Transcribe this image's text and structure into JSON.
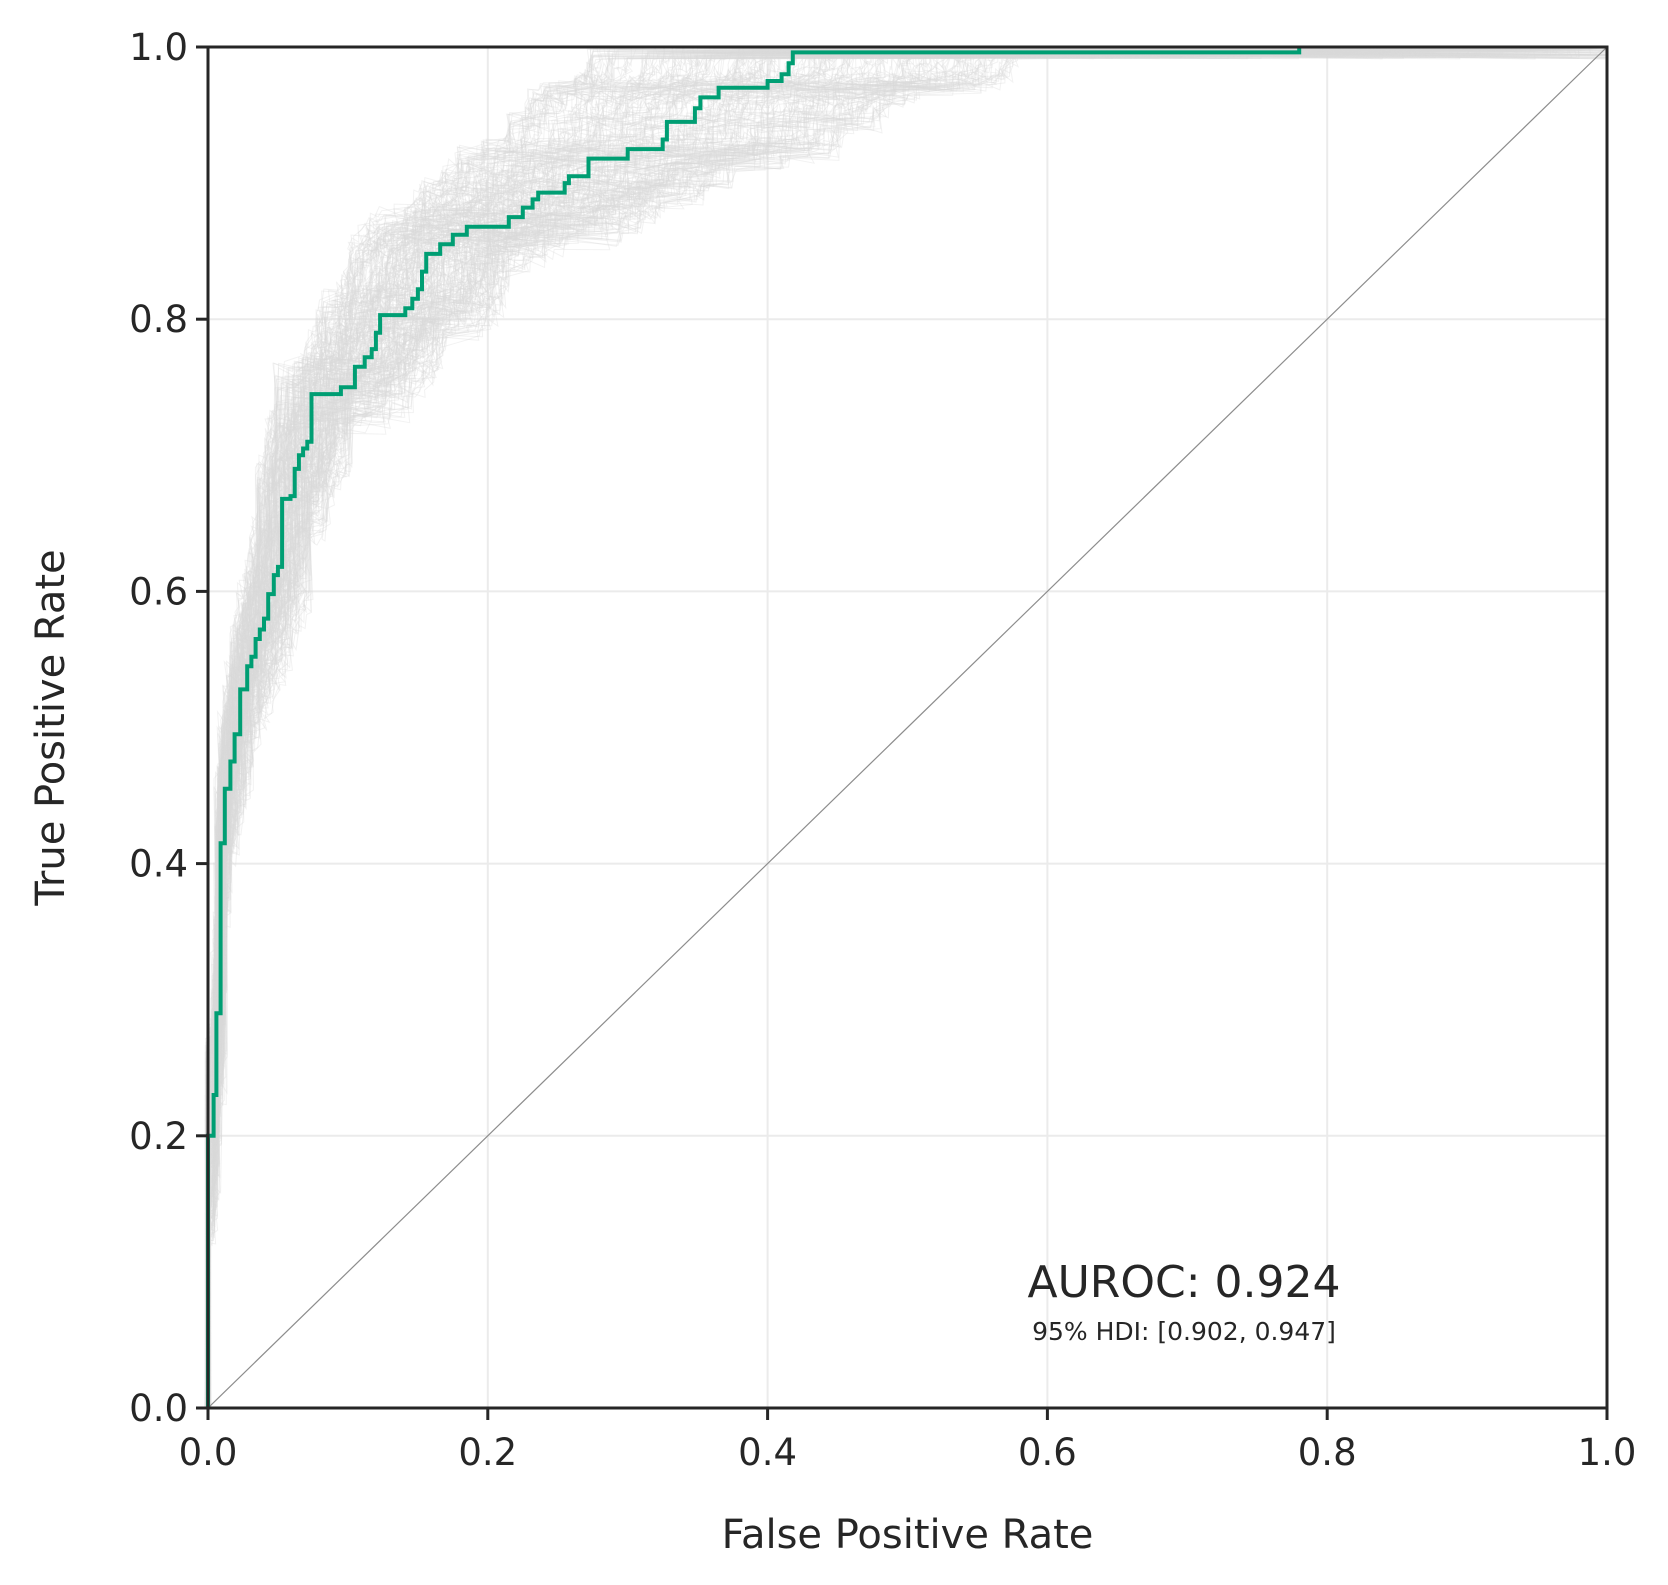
{
  "chart_data": {
    "type": "line",
    "xlabel": "False Positive Rate",
    "ylabel": "True Positive Rate",
    "xlim": [
      0.0,
      1.0
    ],
    "ylim": [
      0.0,
      1.0
    ],
    "xticks": [
      "0.0",
      "0.2",
      "0.4",
      "0.6",
      "0.8",
      "1.0"
    ],
    "yticks": [
      "0.0",
      "0.2",
      "0.4",
      "0.6",
      "0.8",
      "1.0"
    ],
    "grid": true,
    "annotation": {
      "auroc": "AUROC: 0.924",
      "hdi": "95% HDI: [0.902, 0.947]"
    },
    "colors": {
      "roc": "#009e73",
      "samples": "#d9d9d9",
      "diagonal": "#8c8c8c",
      "grid": "#ebebeb",
      "axes": "#262626"
    },
    "roc_curve": {
      "step": true,
      "points": [
        [
          0.0,
          0.0
        ],
        [
          0.0,
          0.2
        ],
        [
          0.004,
          0.2
        ],
        [
          0.004,
          0.23
        ],
        [
          0.006,
          0.23
        ],
        [
          0.006,
          0.29
        ],
        [
          0.009,
          0.29
        ],
        [
          0.009,
          0.415
        ],
        [
          0.012,
          0.415
        ],
        [
          0.012,
          0.455
        ],
        [
          0.016,
          0.455
        ],
        [
          0.016,
          0.475
        ],
        [
          0.019,
          0.475
        ],
        [
          0.019,
          0.495
        ],
        [
          0.023,
          0.495
        ],
        [
          0.023,
          0.528
        ],
        [
          0.028,
          0.528
        ],
        [
          0.028,
          0.545
        ],
        [
          0.031,
          0.545
        ],
        [
          0.031,
          0.552
        ],
        [
          0.034,
          0.552
        ],
        [
          0.034,
          0.565
        ],
        [
          0.037,
          0.565
        ],
        [
          0.037,
          0.572
        ],
        [
          0.04,
          0.572
        ],
        [
          0.04,
          0.58
        ],
        [
          0.043,
          0.58
        ],
        [
          0.043,
          0.598
        ],
        [
          0.047,
          0.598
        ],
        [
          0.047,
          0.612
        ],
        [
          0.05,
          0.612
        ],
        [
          0.05,
          0.618
        ],
        [
          0.053,
          0.618
        ],
        [
          0.053,
          0.668
        ],
        [
          0.059,
          0.668
        ],
        [
          0.059,
          0.67
        ],
        [
          0.062,
          0.67
        ],
        [
          0.062,
          0.69
        ],
        [
          0.065,
          0.69
        ],
        [
          0.065,
          0.7
        ],
        [
          0.068,
          0.7
        ],
        [
          0.068,
          0.705
        ],
        [
          0.071,
          0.705
        ],
        [
          0.071,
          0.71
        ],
        [
          0.074,
          0.71
        ],
        [
          0.074,
          0.745
        ],
        [
          0.095,
          0.745
        ],
        [
          0.095,
          0.75
        ],
        [
          0.105,
          0.75
        ],
        [
          0.105,
          0.765
        ],
        [
          0.112,
          0.765
        ],
        [
          0.112,
          0.772
        ],
        [
          0.117,
          0.772
        ],
        [
          0.117,
          0.778
        ],
        [
          0.12,
          0.778
        ],
        [
          0.12,
          0.79
        ],
        [
          0.123,
          0.79
        ],
        [
          0.123,
          0.803
        ],
        [
          0.141,
          0.803
        ],
        [
          0.141,
          0.808
        ],
        [
          0.146,
          0.808
        ],
        [
          0.146,
          0.815
        ],
        [
          0.15,
          0.815
        ],
        [
          0.15,
          0.822
        ],
        [
          0.153,
          0.822
        ],
        [
          0.153,
          0.835
        ],
        [
          0.156,
          0.835
        ],
        [
          0.156,
          0.848
        ],
        [
          0.166,
          0.848
        ],
        [
          0.166,
          0.855
        ],
        [
          0.175,
          0.855
        ],
        [
          0.175,
          0.862
        ],
        [
          0.185,
          0.862
        ],
        [
          0.185,
          0.868
        ],
        [
          0.215,
          0.868
        ],
        [
          0.215,
          0.875
        ],
        [
          0.225,
          0.875
        ],
        [
          0.225,
          0.882
        ],
        [
          0.232,
          0.882
        ],
        [
          0.232,
          0.888
        ],
        [
          0.236,
          0.888
        ],
        [
          0.236,
          0.893
        ],
        [
          0.255,
          0.893
        ],
        [
          0.255,
          0.9
        ],
        [
          0.258,
          0.9
        ],
        [
          0.258,
          0.905
        ],
        [
          0.272,
          0.905
        ],
        [
          0.272,
          0.918
        ],
        [
          0.3,
          0.918
        ],
        [
          0.3,
          0.925
        ],
        [
          0.325,
          0.925
        ],
        [
          0.325,
          0.932
        ],
        [
          0.328,
          0.932
        ],
        [
          0.328,
          0.945
        ],
        [
          0.348,
          0.945
        ],
        [
          0.348,
          0.955
        ],
        [
          0.352,
          0.955
        ],
        [
          0.352,
          0.963
        ],
        [
          0.365,
          0.963
        ],
        [
          0.365,
          0.97
        ],
        [
          0.4,
          0.97
        ],
        [
          0.4,
          0.975
        ],
        [
          0.41,
          0.975
        ],
        [
          0.41,
          0.98
        ],
        [
          0.415,
          0.98
        ],
        [
          0.415,
          0.988
        ],
        [
          0.418,
          0.988
        ],
        [
          0.418,
          0.996
        ],
        [
          0.78,
          0.996
        ],
        [
          0.78,
          1.0
        ]
      ]
    },
    "posterior_samples": {
      "count": 250,
      "note_band": "samples spread around the ROC curve"
    }
  }
}
